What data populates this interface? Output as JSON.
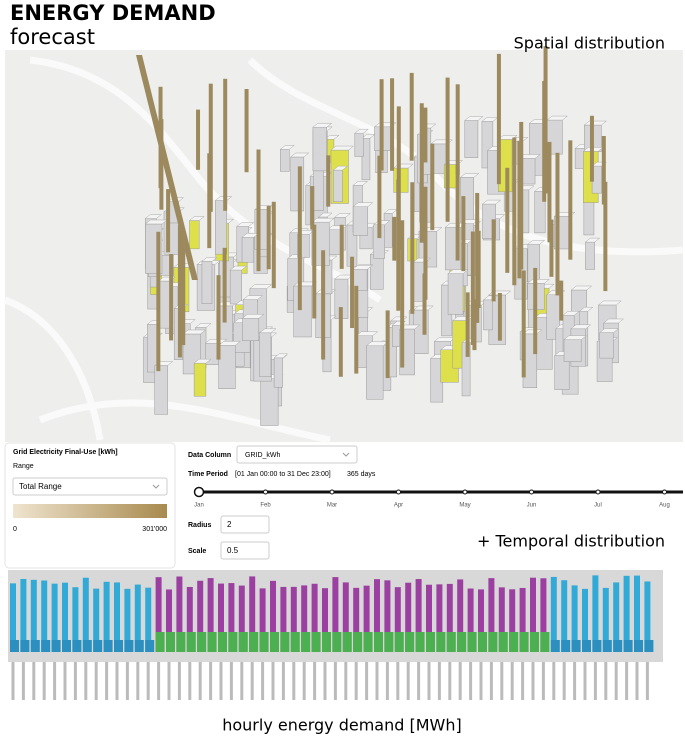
{
  "header": {
    "title": "ENERGY DEMAND",
    "subtitle": "forecast",
    "spatial_label": "Spatial distribution",
    "temporal_label": "+ Temporal distribution"
  },
  "legend_panel": {
    "title": "Grid Electricity Final-Use [kWh]",
    "range_label": "Range",
    "range_value": "Total Range",
    "min": "0",
    "max": "301'000"
  },
  "controls": {
    "data_column_label": "Data Column",
    "data_column_value": "GRID_kWh",
    "time_period_label": "Time Period",
    "time_period_value": "[01 Jan 00:00 to 31 Dec 23:00]",
    "days": "365 days",
    "months": [
      "Jan",
      "Feb",
      "Mar",
      "Apr",
      "May",
      "Jun",
      "Jul",
      "Aug"
    ],
    "radius_label": "Radius",
    "radius_value": "2",
    "scale_label": "Scale",
    "scale_value": "0.5"
  },
  "caption": "hourly energy demand [MWh]"
}
